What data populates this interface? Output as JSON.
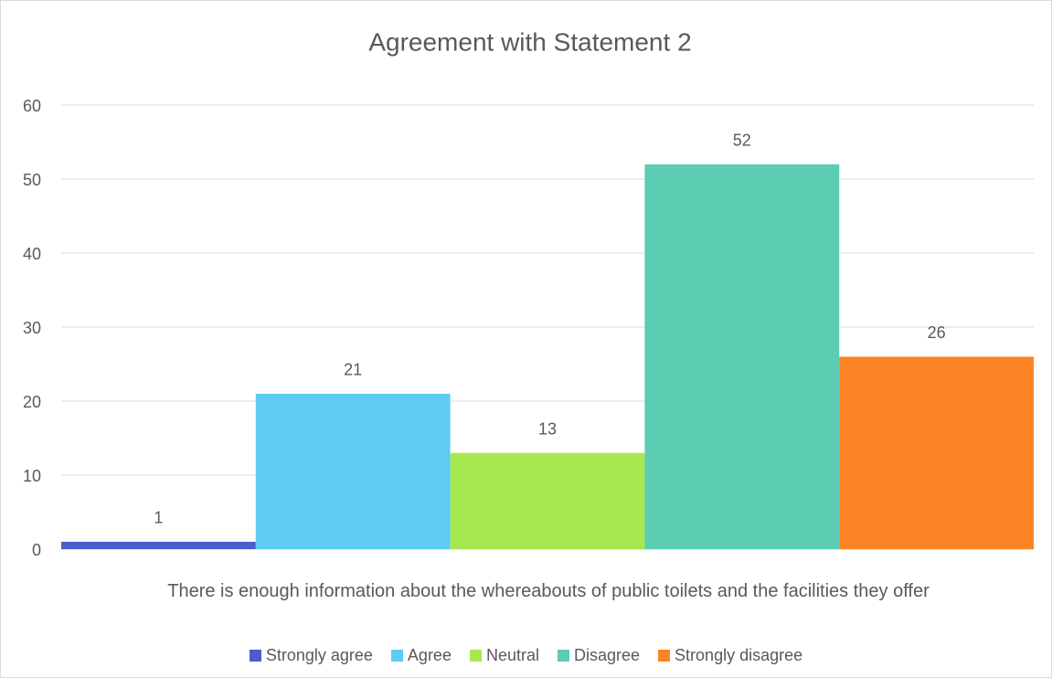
{
  "chart_data": {
    "type": "bar",
    "title": "Agreement with Statement 2",
    "categories": [
      "There is enough information about the whereabouts of public toilets and the facilities they offer"
    ],
    "series": [
      {
        "name": "Strongly agree",
        "color": "#4a5fc9",
        "values": [
          1
        ]
      },
      {
        "name": "Agree",
        "color": "#5ecbf3",
        "values": [
          21
        ]
      },
      {
        "name": "Neutral",
        "color": "#a6e850",
        "values": [
          13
        ]
      },
      {
        "name": "Disagree",
        "color": "#5ccdb2",
        "values": [
          52
        ]
      },
      {
        "name": "Strongly disagree",
        "color": "#fd8424",
        "values": [
          26
        ]
      }
    ],
    "ylim": [
      0,
      60
    ],
    "yticks": [
      0,
      10,
      20,
      30,
      40,
      50,
      60
    ],
    "grid": true,
    "legend": "bottom"
  }
}
